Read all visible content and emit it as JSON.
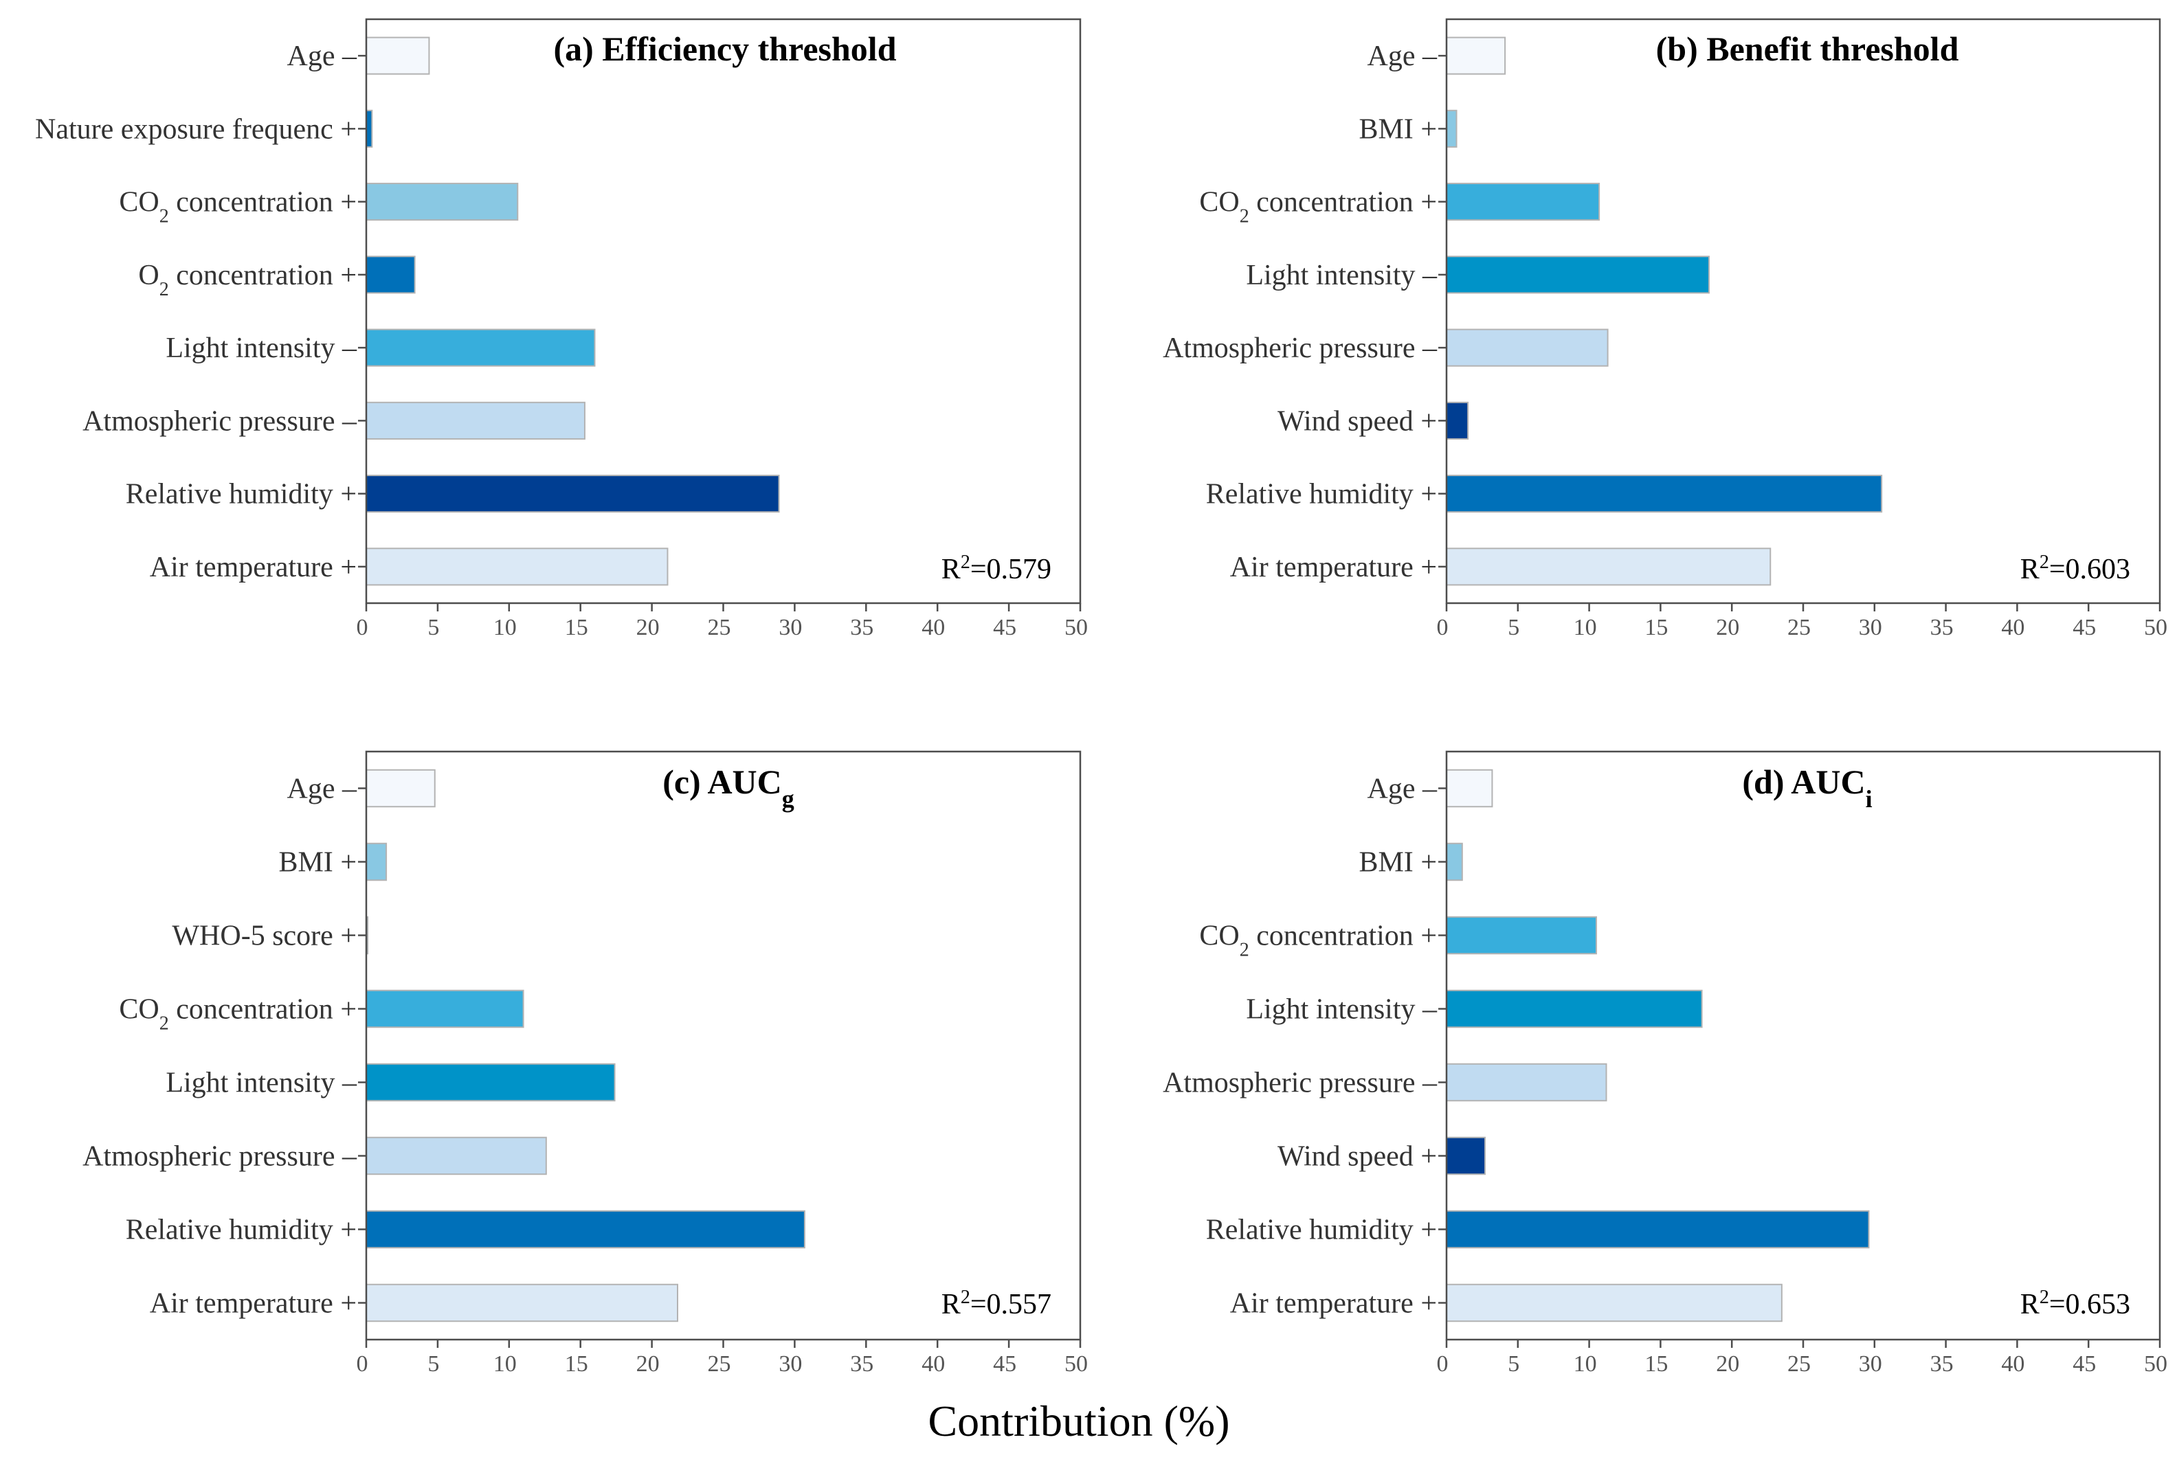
{
  "xlabel": "Contribution (%)",
  "colors": {
    "c1": "#f4f8fd",
    "c2": "#dbe9f6",
    "c3": "#c0dbf1",
    "c4": "#89c8e3",
    "c5": "#37aedc",
    "c6": "#0093c8",
    "c7": "#0070b9",
    "c8": "#003e92"
  },
  "chart_data": [
    {
      "type": "bar",
      "orientation": "horizontal",
      "title": "(a) Efficiency threshold",
      "r2": "0.579",
      "xlabel": "Contribution (%)",
      "xlim": [
        0,
        50
      ],
      "xticks": [
        "0",
        "5",
        "10",
        "15",
        "20",
        "25",
        "30",
        "35",
        "40",
        "45",
        "50"
      ],
      "categories": [
        "Age",
        "Nature exposure frequenc",
        "CO2 concentration",
        "O2 concentration",
        "Light intensity",
        "Atmospheric pressure",
        "Relative humidity",
        "Air temperature"
      ],
      "signs": [
        "–",
        "+",
        "+",
        "+",
        "–",
        "–",
        "+",
        "+"
      ],
      "values": [
        4.4,
        0.4,
        10.6,
        3.4,
        16.0,
        15.3,
        28.9,
        21.1
      ],
      "color_keys": [
        "c1",
        "c7",
        "c4",
        "c7",
        "c5",
        "c3",
        "c8",
        "c2"
      ]
    },
    {
      "type": "bar",
      "orientation": "horizontal",
      "title": "(b) Benefit threshold",
      "r2": "0.603",
      "xlabel": "Contribution (%)",
      "xlim": [
        0,
        50
      ],
      "xticks": [
        "0",
        "5",
        "10",
        "15",
        "20",
        "25",
        "30",
        "35",
        "40",
        "45",
        "50"
      ],
      "categories": [
        "Age",
        "BMI",
        "CO2 concentration",
        "Light intensity",
        "Atmospheric pressure",
        "Wind speed",
        "Relative humidity",
        "Air temperature"
      ],
      "signs": [
        "–",
        "+",
        "+",
        "–",
        "–",
        "+",
        "+",
        "+"
      ],
      "values": [
        4.1,
        0.7,
        10.7,
        18.4,
        11.3,
        1.5,
        30.5,
        22.7
      ],
      "color_keys": [
        "c1",
        "c4",
        "c5",
        "c6",
        "c3",
        "c8",
        "c7",
        "c2"
      ]
    },
    {
      "type": "bar",
      "orientation": "horizontal",
      "title": "(c) AUCg",
      "r2": "0.557",
      "xlabel": "Contribution (%)",
      "xlim": [
        0,
        50
      ],
      "xticks": [
        "0",
        "5",
        "10",
        "15",
        "20",
        "25",
        "30",
        "35",
        "40",
        "45",
        "50"
      ],
      "categories": [
        "Age",
        "BMI",
        "WHO-5 score",
        "CO2 concentration",
        "Light intensity",
        "Atmospheric pressure",
        "Relative humidity",
        "Air temperature"
      ],
      "signs": [
        "–",
        "+",
        "+",
        "+",
        "–",
        "–",
        "+",
        "+"
      ],
      "values": [
        4.8,
        1.4,
        0.1,
        11.0,
        17.4,
        12.6,
        30.7,
        21.8
      ],
      "color_keys": [
        "c1",
        "c4",
        "c7",
        "c5",
        "c6",
        "c3",
        "c7",
        "c2"
      ]
    },
    {
      "type": "bar",
      "orientation": "horizontal",
      "title": "(d) AUCi",
      "r2": "0.653",
      "xlabel": "Contribution (%)",
      "xlim": [
        0,
        50
      ],
      "xticks": [
        "0",
        "5",
        "10",
        "15",
        "20",
        "25",
        "30",
        "35",
        "40",
        "45",
        "50"
      ],
      "categories": [
        "Age",
        "BMI",
        "CO2 concentration",
        "Light intensity",
        "Atmospheric pressure",
        "Wind speed",
        "Relative humidity",
        "Air temperature"
      ],
      "signs": [
        "–",
        "+",
        "+",
        "–",
        "–",
        "+",
        "+",
        "+"
      ],
      "values": [
        3.2,
        1.1,
        10.5,
        17.9,
        11.2,
        2.7,
        29.6,
        23.5
      ],
      "color_keys": [
        "c1",
        "c4",
        "c5",
        "c6",
        "c3",
        "c8",
        "c7",
        "c2"
      ]
    }
  ]
}
